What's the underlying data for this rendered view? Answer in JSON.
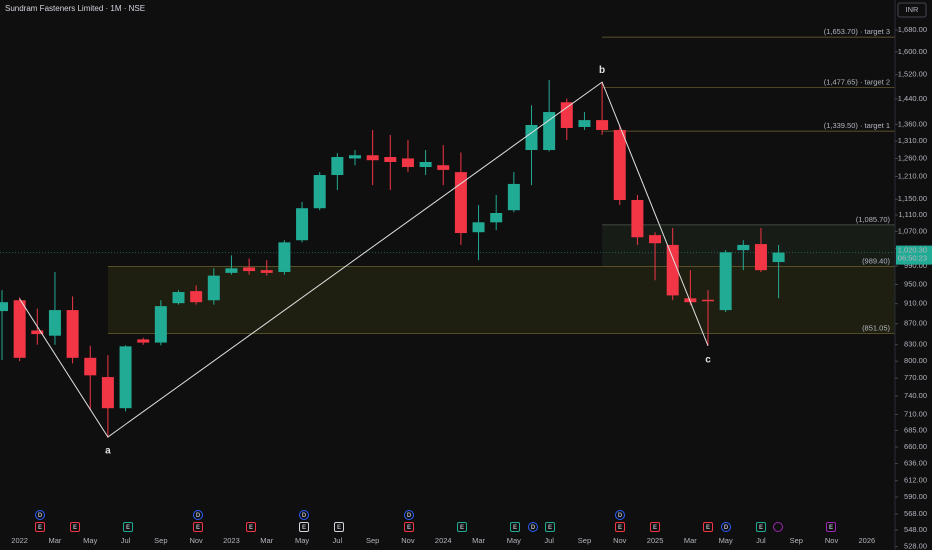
{
  "chart_data": {
    "type": "candlestick",
    "title": "Sundram Fasteners Limited · 1M · NSE",
    "currency": "INR",
    "categories": [
      null,
      "2022",
      null,
      "Mar",
      null,
      "May",
      null,
      "Jul",
      null,
      "Sep",
      null,
      "Nov",
      null,
      "2023",
      null,
      "Mar",
      null,
      "May",
      null,
      "Jul",
      null,
      "Sep",
      null,
      "Nov",
      null,
      "2024",
      null,
      "Mar",
      null,
      "May",
      null,
      "Jul",
      null,
      "Sep",
      null,
      "Nov",
      null,
      "2025",
      null,
      "Mar",
      null,
      "May",
      null,
      "Jul",
      null,
      "Sep",
      null,
      "Nov",
      null,
      "2026"
    ],
    "open": [
      895,
      917,
      857,
      847,
      897,
      806,
      772,
      720,
      840,
      834,
      911,
      936,
      917,
      975,
      987,
      981,
      977,
      1049,
      1127,
      1214,
      1260,
      1269,
      1264,
      1260,
      1236,
      1241,
      1222,
      1068,
      1092,
      1122,
      1284,
      1284,
      1429,
      1352,
      1373,
      1343,
      1148,
      1061,
      1038,
      921,
      918,
      897,
      1026,
      1040,
      999,
      null,
      null,
      null,
      null,
      null
    ],
    "high": [
      938,
      923,
      900,
      977,
      925,
      828,
      811,
      829,
      843,
      917,
      938,
      948,
      985,
      1014,
      1007,
      1003,
      1049,
      1143,
      1222,
      1275,
      1284,
      1343,
      1328,
      1313,
      1284,
      1298,
      1277,
      1135,
      1161,
      1222,
      1419,
      1502,
      1441,
      1398,
      1495,
      1358,
      1161,
      1068,
      1078,
      981,
      938,
      1026,
      1049,
      1078,
      1038,
      null,
      null,
      null,
      null,
      null
    ],
    "low": [
      802,
      800,
      830,
      830,
      796,
      717,
      674,
      715,
      830,
      829,
      908,
      908,
      908,
      971,
      971,
      969,
      971,
      1044,
      1122,
      1174,
      1241,
      1187,
      1174,
      1222,
      1214,
      1187,
      1038,
      1003,
      1073,
      1117,
      1187,
      1280,
      1313,
      1343,
      1328,
      1135,
      1038,
      959,
      917,
      907,
      828,
      893,
      981,
      977,
      921,
      null,
      null,
      null,
      null,
      null
    ],
    "close": [
      913,
      806,
      850,
      897,
      806,
      775,
      720,
      827,
      834,
      905,
      934,
      913,
      969,
      985,
      979,
      975,
      1044,
      1127,
      1214,
      1264,
      1269,
      1255,
      1250,
      1236,
      1250,
      1228,
      1066,
      1092,
      1115,
      1190,
      1358,
      1398,
      1349,
      1373,
      1343,
      1148,
      1056,
      1042,
      927,
      913,
      915,
      1021,
      1038,
      981,
      1020.3,
      null,
      null,
      null,
      null,
      null
    ],
    "up_color": "#22ab94",
    "down_color": "#f23645",
    "last_price": {
      "value": 1020.3,
      "label": "1,020.30"
    },
    "countdown": "06:50:23",
    "log_scale": true,
    "ylim": [
      524,
      1797
    ],
    "yticks": [
      {
        "value": 1680,
        "label": "1,680.00"
      },
      {
        "value": 1600,
        "label": "1,600.00"
      },
      {
        "value": 1520,
        "label": "1,520.00"
      },
      {
        "value": 1440,
        "label": "1,440.00"
      },
      {
        "value": 1360,
        "label": "1,360.00"
      },
      {
        "value": 1310,
        "label": "1,310.00"
      },
      {
        "value": 1260,
        "label": "1,260.00"
      },
      {
        "value": 1210,
        "label": "1,210.00"
      },
      {
        "value": 1150,
        "label": "1,150.00"
      },
      {
        "value": 1110,
        "label": "1,110.00"
      },
      {
        "value": 1070,
        "label": "1,070.00"
      },
      {
        "value": 1030,
        "label": "1,030.00"
      },
      {
        "value": 990,
        "label": "990.00"
      },
      {
        "value": 950,
        "label": "950.00"
      },
      {
        "value": 910,
        "label": "910.00"
      },
      {
        "value": 870,
        "label": "870.00"
      },
      {
        "value": 830,
        "label": "830.00"
      },
      {
        "value": 800,
        "label": "800.00"
      },
      {
        "value": 770,
        "label": "770.00"
      },
      {
        "value": 740,
        "label": "740.00"
      },
      {
        "value": 710,
        "label": "710.00"
      },
      {
        "value": 685,
        "label": "685.00"
      },
      {
        "value": 660,
        "label": "660.00"
      },
      {
        "value": 636,
        "label": "636.00"
      },
      {
        "value": 612,
        "label": "612.00"
      },
      {
        "value": 590,
        "label": "590.00"
      },
      {
        "value": 568,
        "label": "568.00"
      },
      {
        "value": 548,
        "label": "548.00"
      },
      {
        "value": 528,
        "label": "528.00"
      }
    ],
    "levels": [
      {
        "value": 1653.7,
        "label": "(1,653.70) · target 3",
        "color": "#f0d060"
      },
      {
        "value": 1477.65,
        "label": "(1,477.65) · target 2",
        "color": "#f0d060"
      },
      {
        "value": 1339.5,
        "label": "(1,339.50) · target 1",
        "color": "#f0d060"
      },
      {
        "value": 1085.7,
        "label": "(1,085.70)",
        "color": "#a8b0a8"
      },
      {
        "value": 989.4,
        "label": "(989.40)",
        "color": "#f0d060"
      },
      {
        "value": 851.05,
        "label": "(851.05)",
        "color": "#f0d060"
      }
    ],
    "wave": {
      "values": [
        920,
        675,
        1495,
        828
      ],
      "labels": [
        null,
        "a",
        "b",
        "c"
      ],
      "color": "#e0e0e0"
    },
    "events": [
      {
        "label": "D",
        "color": "#2962ff"
      },
      {
        "label": "E",
        "color": "#f23645"
      },
      {
        "label": "E",
        "color": "#f23645"
      },
      {
        "label": "E",
        "color": "#22ab94"
      },
      {
        "label": "D",
        "color": "#2962ff"
      },
      {
        "label": "E",
        "color": "#f23645"
      },
      {
        "label": "E",
        "color": "#f23645"
      },
      {
        "label": "D",
        "color": "#2962ff"
      },
      {
        "label": "E",
        "color": "#d1d4dc"
      },
      {
        "label": "E",
        "color": "#d1d4dc"
      },
      {
        "label": "D",
        "color": "#2962ff"
      },
      {
        "label": "E",
        "color": "#f23645"
      },
      {
        "label": "E",
        "color": "#22ab94"
      },
      {
        "label": "E",
        "color": "#22ab94"
      },
      {
        "label": "D",
        "color": "#2962ff"
      },
      {
        "label": "E",
        "color": "#22ab94"
      },
      {
        "label": "D",
        "color": "#2962ff"
      },
      {
        "label": "E",
        "color": "#f23645"
      },
      {
        "label": "E",
        "color": "#f23645"
      },
      {
        "label": "E",
        "color": "#f23645"
      },
      {
        "label": "D",
        "color": "#2962ff"
      },
      {
        "label": "E",
        "color": "#22ab94"
      },
      {
        "label": "E",
        "color": "#9c27b0"
      }
    ]
  }
}
